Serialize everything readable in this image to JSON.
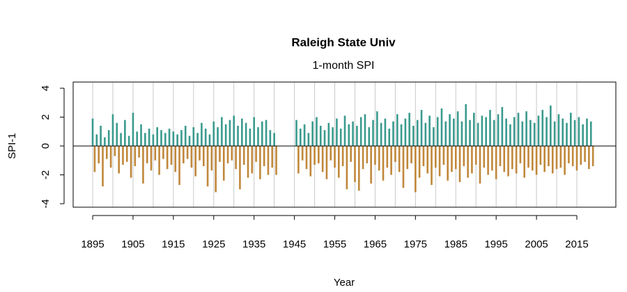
{
  "chart_data": {
    "type": "bar",
    "title": "Raleigh State Univ",
    "subtitle": "1-month SPI",
    "x_label": "Year",
    "y_label": "SPI-1",
    "colors": {
      "positive": "#3a9a8e",
      "negative": "#c0873a"
    },
    "zero_line": true,
    "xlim": [
      1890.16,
      2024.67
    ],
    "ylim": [
      -4.24,
      4.43
    ],
    "xticks": [
      1895,
      1905,
      1915,
      1925,
      1935,
      1945,
      1955,
      1965,
      1975,
      1985,
      1995,
      2005,
      2015
    ],
    "yticks": [
      -4,
      -2,
      0,
      2,
      4
    ],
    "vgrid": [
      1895,
      1900,
      1905,
      1910,
      1915,
      1920,
      1925,
      1930,
      1935,
      1940,
      1945,
      1950,
      1955,
      1960,
      1965,
      1970,
      1975,
      1980,
      1985,
      1990,
      1995,
      2000,
      2005,
      2010,
      2015
    ],
    "x": [
      1895,
      1895.5,
      1896,
      1896.5,
      1897,
      1897.5,
      1898,
      1898.5,
      1899,
      1899.5,
      1900,
      1900.5,
      1901,
      1901.5,
      1902,
      1902.5,
      1903,
      1903.5,
      1904,
      1904.5,
      1905,
      1905.5,
      1906,
      1906.5,
      1907,
      1907.5,
      1908,
      1908.5,
      1909,
      1909.5,
      1910,
      1910.5,
      1911,
      1911.5,
      1912,
      1912.5,
      1913,
      1913.5,
      1914,
      1914.5,
      1915,
      1915.5,
      1916,
      1916.5,
      1917,
      1917.5,
      1918,
      1918.5,
      1919,
      1919.5,
      1920,
      1920.5,
      1921,
      1921.5,
      1922,
      1922.5,
      1923,
      1923.5,
      1924,
      1924.5,
      1925,
      1925.5,
      1926,
      1926.5,
      1927,
      1927.5,
      1928,
      1928.5,
      1929,
      1929.5,
      1930,
      1930.5,
      1931,
      1931.5,
      1932,
      1932.5,
      1933,
      1933.5,
      1934,
      1934.5,
      1935,
      1935.5,
      1936,
      1936.5,
      1937,
      1937.5,
      1938,
      1938.5,
      1939,
      1939.5,
      1940,
      1940.5,
      1945.5,
      1946,
      1946.5,
      1947,
      1947.5,
      1948,
      1948.5,
      1949,
      1949.5,
      1950,
      1950.5,
      1951,
      1951.5,
      1952,
      1952.5,
      1953,
      1953.5,
      1954,
      1954.5,
      1955,
      1955.5,
      1956,
      1956.5,
      1957,
      1957.5,
      1958,
      1958.5,
      1959,
      1959.5,
      1960,
      1960.5,
      1961,
      1961.5,
      1962,
      1962.5,
      1963,
      1963.5,
      1964,
      1964.5,
      1965,
      1965.5,
      1966,
      1966.5,
      1967,
      1967.5,
      1968,
      1968.5,
      1969,
      1969.5,
      1970,
      1970.5,
      1971,
      1971.5,
      1972,
      1972.5,
      1973,
      1973.5,
      1974,
      1974.5,
      1975,
      1975.5,
      1976,
      1976.5,
      1977,
      1977.5,
      1978,
      1978.5,
      1979,
      1979.5,
      1980,
      1980.5,
      1981,
      1981.5,
      1982,
      1982.5,
      1983,
      1983.5,
      1984,
      1984.5,
      1985,
      1985.5,
      1986,
      1986.5,
      1987,
      1987.5,
      1988,
      1988.5,
      1989,
      1989.5,
      1990,
      1990.5,
      1991,
      1991.5,
      1992,
      1992.5,
      1993,
      1993.5,
      1994,
      1994.5,
      1995,
      1995.5,
      1996,
      1996.5,
      1997,
      1997.5,
      1998,
      1998.5,
      1999,
      1999.5,
      2000,
      2000.5,
      2001,
      2001.5,
      2002,
      2002.5,
      2003,
      2003.5,
      2004,
      2004.5,
      2005,
      2005.5,
      2006,
      2006.5,
      2007,
      2007.5,
      2008,
      2008.5,
      2009,
      2009.5,
      2010,
      2010.5,
      2011,
      2011.5,
      2012,
      2012.5,
      2013,
      2013.5,
      2014,
      2014.5,
      2015,
      2015.5,
      2016,
      2016.5,
      2017,
      2017.5,
      2018,
      2018.5,
      2019
    ],
    "values": [
      1.9,
      -1.8,
      0.8,
      -1.2,
      1.4,
      -2.8,
      0.6,
      -0.9,
      1.1,
      -1.5,
      2.2,
      -0.7,
      1.6,
      -1.9,
      0.9,
      -1.3,
      1.8,
      -1.1,
      0.7,
      -2.2,
      2.3,
      -1.4,
      1.0,
      -0.8,
      1.5,
      -2.6,
      0.9,
      -1.2,
      1.2,
      -1.7,
      0.8,
      -1.0,
      1.3,
      -2.0,
      1.1,
      -0.9,
      0.9,
      -1.6,
      1.2,
      -1.3,
      1.0,
      -1.8,
      0.8,
      -2.7,
      1.1,
      -1.2,
      1.4,
      -0.9,
      0.7,
      -1.5,
      1.3,
      -2.1,
      0.9,
      -1.0,
      1.6,
      -1.4,
      1.2,
      -2.8,
      0.8,
      -1.7,
      1.7,
      -3.2,
      1.3,
      -1.1,
      2.0,
      -2.4,
      1.5,
      -1.2,
      1.8,
      -1.0,
      2.1,
      -1.6,
      1.4,
      -3.0,
      1.9,
      -1.3,
      1.6,
      -2.2,
      1.2,
      -1.9,
      2.0,
      -1.1,
      1.3,
      -2.3,
      1.7,
      -1.4,
      1.8,
      -2.0,
      1.1,
      -1.5,
      0.9,
      -2.0,
      1.8,
      -1.9,
      1.2,
      -1.0,
      1.5,
      -1.6,
      0.9,
      -2.1,
      1.7,
      -1.3,
      2.0,
      -1.2,
      1.4,
      -1.8,
      1.1,
      -2.3,
      1.6,
      -1.0,
      1.3,
      -1.5,
      1.9,
      -2.2,
      1.2,
      -1.4,
      2.1,
      -3.0,
      1.5,
      -1.1,
      1.7,
      -2.5,
      1.4,
      -3.1,
      2.0,
      -1.6,
      2.2,
      -1.2,
      1.3,
      -2.6,
      1.8,
      -1.3,
      2.4,
      -1.7,
      1.6,
      -2.4,
      1.9,
      -1.5,
      1.2,
      -2.0,
      1.7,
      -1.1,
      2.2,
      -1.8,
      1.5,
      -2.9,
      1.9,
      -1.6,
      2.3,
      -1.2,
      1.4,
      -3.2,
      1.8,
      -2.2,
      2.5,
      -1.4,
      1.6,
      -1.9,
      2.1,
      -2.7,
      1.3,
      -1.5,
      2.0,
      -2.1,
      2.6,
      -1.3,
      1.7,
      -2.4,
      2.2,
      -1.8,
      1.9,
      -1.6,
      2.4,
      -2.5,
      1.7,
      -1.4,
      2.9,
      -2.2,
      1.8,
      -1.9,
      2.3,
      -1.3,
      1.6,
      -2.6,
      2.1,
      -1.5,
      2.0,
      -2.0,
      2.5,
      -1.7,
      1.8,
      -2.3,
      2.2,
      -1.4,
      2.7,
      -1.8,
      1.9,
      -2.1,
      1.5,
      -1.6,
      2.0,
      -1.9,
      2.3,
      -1.2,
      1.7,
      -2.2,
      2.4,
      -1.5,
      1.8,
      -1.7,
      1.6,
      -2.0,
      2.1,
      -1.3,
      2.5,
      -1.8,
      2.0,
      -1.4,
      2.8,
      -1.9,
      1.7,
      -1.6,
      2.2,
      -1.5,
      1.9,
      -2.0,
      1.6,
      -1.2,
      2.3,
      -1.4,
      1.8,
      -1.7,
      2.0,
      -1.3,
      1.5,
      -1.1,
      1.9,
      -1.6,
      1.7,
      -1.4
    ]
  }
}
